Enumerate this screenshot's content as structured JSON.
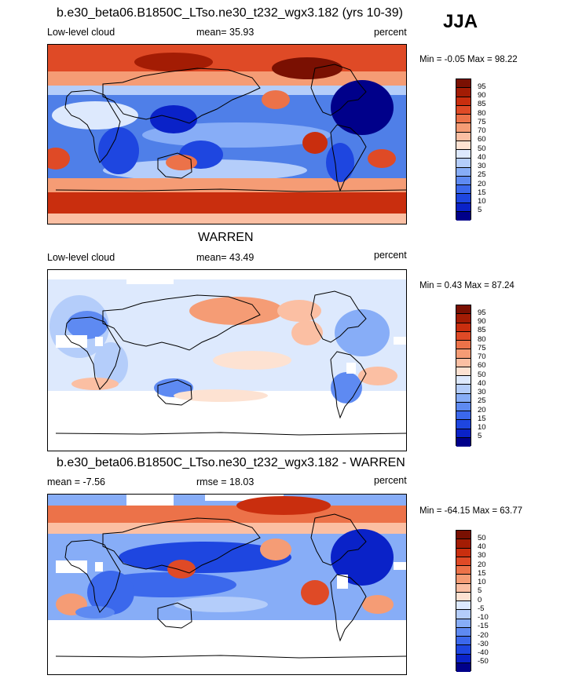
{
  "season": "JJA",
  "panels": [
    {
      "id": "model",
      "title": "b.e30_beta06.B1850C_LTso.ne30_t232_wgx3.182 (yrs 10-39)",
      "left_label": "Low-level cloud",
      "center_label": "mean=  35.93",
      "right_label": "percent",
      "minmax": "Min =  -0.05 Max =  98.22",
      "colorbar_labels": [
        "95",
        "90",
        "85",
        "80",
        "75",
        "70",
        "60",
        "50",
        "40",
        "30",
        "25",
        "20",
        "15",
        "10",
        "5"
      ]
    },
    {
      "id": "obs",
      "title": "WARREN",
      "left_label": "Low-level cloud",
      "center_label": "mean=  43.49",
      "right_label": "percent",
      "minmax": "Min =   0.43 Max =  87.24",
      "colorbar_labels": [
        "95",
        "90",
        "85",
        "80",
        "75",
        "70",
        "60",
        "50",
        "40",
        "30",
        "25",
        "20",
        "15",
        "10",
        "5"
      ]
    },
    {
      "id": "diff",
      "title": "b.e30_beta06.B1850C_LTso.ne30_t232_wgx3.182 - WARREN",
      "left_label": "mean =  -7.56",
      "center_label": "rmse =  18.03",
      "right_label": "percent",
      "minmax": "Min = -64.15 Max =  63.77",
      "colorbar_labels": [
        "50",
        "40",
        "30",
        "20",
        "15",
        "10",
        "5",
        "0",
        "-5",
        "-10",
        "-15",
        "-20",
        "-30",
        "-40",
        "-50"
      ]
    }
  ],
  "colors": {
    "scale": [
      "#00008a",
      "#0a22c8",
      "#1e46e0",
      "#3b68ec",
      "#5e8af2",
      "#87adf7",
      "#b4cdfa",
      "#dde9fd",
      "#fde2d2",
      "#fbbfa3",
      "#f59c75",
      "#ec7249",
      "#df4a26",
      "#c92e0e",
      "#a31c04",
      "#7a1002"
    ]
  }
}
